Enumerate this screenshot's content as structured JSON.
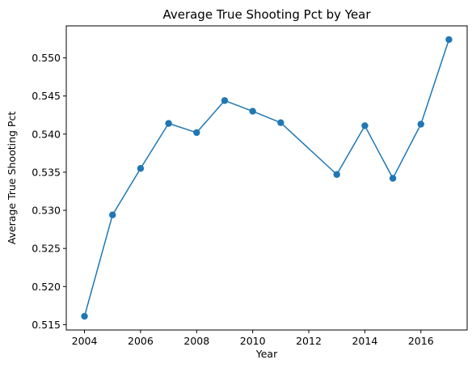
{
  "chart_data": {
    "type": "line",
    "title": "Average True Shooting Pct by Year",
    "xlabel": "Year",
    "ylabel": "Average True Shooting Pct",
    "xlim": [
      2003.35,
      2017.65
    ],
    "ylim": [
      0.5143,
      0.5542
    ],
    "xticks": [
      2004,
      2006,
      2008,
      2010,
      2012,
      2014,
      2016
    ],
    "yticks": [
      0.515,
      0.52,
      0.525,
      0.53,
      0.535,
      0.54,
      0.545,
      0.55
    ],
    "grid": false,
    "legend": "none",
    "series": [
      {
        "color": "#1f77b4",
        "marker": "circle",
        "x": [
          2004,
          2005,
          2006,
          2007,
          2008,
          2009,
          2010,
          2011,
          2013,
          2014,
          2015,
          2016,
          2017
        ],
        "y": [
          0.5161,
          0.5294,
          0.5355,
          0.5414,
          0.5402,
          0.5444,
          0.543,
          0.5415,
          0.5347,
          0.5411,
          0.5342,
          0.5413,
          0.5524
        ]
      }
    ]
  }
}
